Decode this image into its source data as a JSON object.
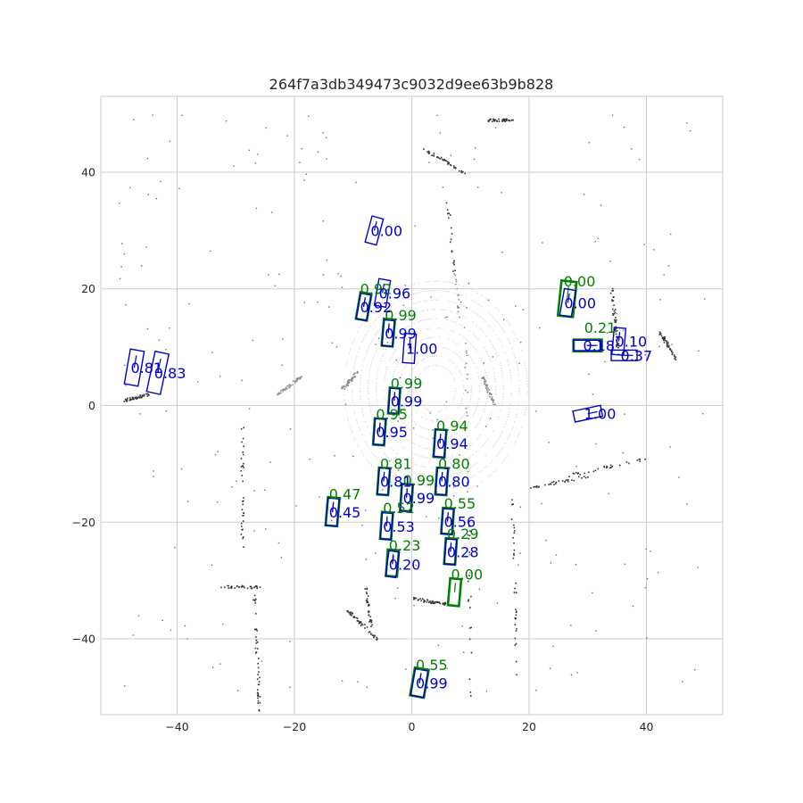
{
  "chart_data": {
    "type": "scatter",
    "title": "264f7a3db349473c9032d9ee63b9b828",
    "xlim": [
      -53,
      53
    ],
    "ylim": [
      -53,
      53
    ],
    "x_ticks": [
      -40,
      -20,
      0,
      20,
      40
    ],
    "y_ticks": [
      -40,
      -20,
      0,
      20,
      40
    ],
    "grid": true,
    "colors": {
      "ground_truth": "#008000",
      "prediction": "#0000cc",
      "points_near": "#d9d9d9",
      "points_far": "#333333"
    },
    "ground_truth_boxes": [
      {
        "x": -8.2,
        "y": 17.0,
        "w": 1.9,
        "l": 4.6,
        "yaw": 80,
        "label": "0.92"
      },
      {
        "x": -4.0,
        "y": 12.5,
        "w": 1.9,
        "l": 4.6,
        "yaw": 85,
        "label": "0.99"
      },
      {
        "x": -3.0,
        "y": 0.8,
        "w": 1.8,
        "l": 4.4,
        "yaw": 86,
        "label": "0.99"
      },
      {
        "x": -5.5,
        "y": -4.5,
        "w": 1.9,
        "l": 4.5,
        "yaw": 86,
        "label": "0.95"
      },
      {
        "x": 4.8,
        "y": -6.5,
        "w": 1.9,
        "l": 4.7,
        "yaw": 86,
        "label": "0.94"
      },
      {
        "x": -4.8,
        "y": -13.0,
        "w": 1.9,
        "l": 4.6,
        "yaw": 86,
        "label": "0.81"
      },
      {
        "x": 5.1,
        "y": -13.0,
        "w": 1.9,
        "l": 4.6,
        "yaw": 86,
        "label": "0.80"
      },
      {
        "x": -0.9,
        "y": -15.8,
        "w": 1.9,
        "l": 4.6,
        "yaw": 86,
        "label": "0.99"
      },
      {
        "x": -13.5,
        "y": -18.2,
        "w": 2.0,
        "l": 4.8,
        "yaw": 85,
        "label": "0.47"
      },
      {
        "x": -4.3,
        "y": -20.6,
        "w": 1.9,
        "l": 4.6,
        "yaw": 86,
        "label": "0.52"
      },
      {
        "x": 6.1,
        "y": -19.8,
        "w": 1.9,
        "l": 4.4,
        "yaw": 86,
        "label": "0.55"
      },
      {
        "x": -3.3,
        "y": -27.0,
        "w": 1.9,
        "l": 4.5,
        "yaw": 86,
        "label": "0.23"
      },
      {
        "x": 6.6,
        "y": -25.0,
        "w": 1.9,
        "l": 4.4,
        "yaw": 86,
        "label": "0.29"
      },
      {
        "x": 7.3,
        "y": -32.0,
        "w": 1.9,
        "l": 4.6,
        "yaw": 85,
        "label": "0.00"
      },
      {
        "x": 26.5,
        "y": 18.3,
        "w": 2.6,
        "l": 6.0,
        "yaw": 84,
        "label": "0.00"
      },
      {
        "x": 30.0,
        "y": 10.3,
        "w": 2.0,
        "l": 4.8,
        "yaw": 0,
        "label": "0.21"
      },
      {
        "x": 1.3,
        "y": -47.5,
        "w": 2.4,
        "l": 4.8,
        "yaw": 80,
        "label": "0.55"
      }
    ],
    "prediction_boxes": [
      {
        "x": -6.4,
        "y": 30.0,
        "w": 2.0,
        "l": 4.6,
        "yaw": 75,
        "label": "0.00"
      },
      {
        "x": -5.0,
        "y": 19.3,
        "w": 2.0,
        "l": 4.6,
        "yaw": 80,
        "label": "0.96"
      },
      {
        "x": -8.2,
        "y": 16.9,
        "w": 1.8,
        "l": 4.4,
        "yaw": 80,
        "label": "0.92"
      },
      {
        "x": -4.0,
        "y": 12.4,
        "w": 1.8,
        "l": 4.4,
        "yaw": 85,
        "label": "0.99"
      },
      {
        "x": -0.4,
        "y": 9.8,
        "w": 2.0,
        "l": 5.0,
        "yaw": 86,
        "label": "1.00"
      },
      {
        "x": -47.3,
        "y": 6.5,
        "w": 2.4,
        "l": 6.0,
        "yaw": 80,
        "label": "0.81"
      },
      {
        "x": -43.3,
        "y": 5.6,
        "w": 2.4,
        "l": 7.0,
        "yaw": 78,
        "label": "0.83"
      },
      {
        "x": -3.0,
        "y": 0.8,
        "w": 1.7,
        "l": 4.2,
        "yaw": 86,
        "label": "0.99"
      },
      {
        "x": -5.5,
        "y": -4.5,
        "w": 1.8,
        "l": 4.4,
        "yaw": 86,
        "label": "0.95"
      },
      {
        "x": 4.8,
        "y": -6.5,
        "w": 1.8,
        "l": 4.6,
        "yaw": 86,
        "label": "0.94"
      },
      {
        "x": -4.8,
        "y": -13.0,
        "w": 1.8,
        "l": 4.5,
        "yaw": 86,
        "label": "0.81"
      },
      {
        "x": 5.1,
        "y": -13.0,
        "w": 1.8,
        "l": 4.5,
        "yaw": 86,
        "label": "0.80"
      },
      {
        "x": -0.9,
        "y": -15.8,
        "w": 1.8,
        "l": 4.5,
        "yaw": 86,
        "label": "0.99"
      },
      {
        "x": -13.5,
        "y": -18.3,
        "w": 1.9,
        "l": 4.7,
        "yaw": 85,
        "label": "0.45"
      },
      {
        "x": -4.3,
        "y": -20.7,
        "w": 1.8,
        "l": 4.5,
        "yaw": 86,
        "label": "0.53"
      },
      {
        "x": 6.1,
        "y": -19.9,
        "w": 1.8,
        "l": 4.3,
        "yaw": 86,
        "label": "0.56"
      },
      {
        "x": -3.3,
        "y": -27.2,
        "w": 1.8,
        "l": 4.4,
        "yaw": 82,
        "label": "0.20"
      },
      {
        "x": 6.6,
        "y": -25.1,
        "w": 1.8,
        "l": 4.3,
        "yaw": 86,
        "label": "0.28"
      },
      {
        "x": 26.6,
        "y": 17.6,
        "w": 2.0,
        "l": 4.6,
        "yaw": 80,
        "label": "0.00"
      },
      {
        "x": 35.3,
        "y": 11.0,
        "w": 2.0,
        "l": 4.6,
        "yaw": 85,
        "label": "0.10"
      },
      {
        "x": 29.8,
        "y": 10.3,
        "w": 1.8,
        "l": 4.6,
        "yaw": 0,
        "label": "0.18"
      },
      {
        "x": 36.2,
        "y": 8.6,
        "w": 1.8,
        "l": 4.4,
        "yaw": 0,
        "label": "0.37"
      },
      {
        "x": 30.0,
        "y": -1.4,
        "w": 1.9,
        "l": 4.8,
        "yaw": 12,
        "label": "1.00"
      },
      {
        "x": 1.3,
        "y": -47.6,
        "w": 2.2,
        "l": 4.6,
        "yaw": 80,
        "label": "0.99"
      }
    ]
  }
}
